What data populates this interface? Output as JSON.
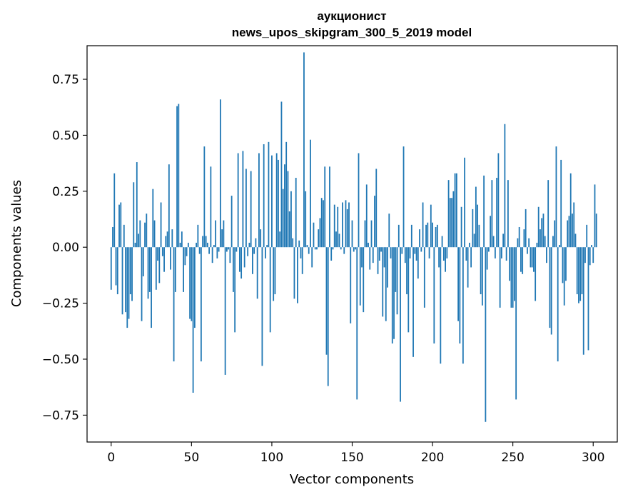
{
  "chart_data": {
    "type": "bar",
    "title_line1": "аукционист",
    "title_line2": "news_upos_skipgram_300_5_2019 model",
    "xlabel": "Vector components",
    "ylabel": "Components values",
    "xlim": [
      -15,
      315
    ],
    "ylim": [
      -0.87,
      0.9
    ],
    "xticks": [
      0,
      50,
      100,
      150,
      200,
      250,
      300
    ],
    "xtick_labels": [
      "0",
      "50",
      "100",
      "150",
      "200",
      "250",
      "300"
    ],
    "yticks": [
      -0.75,
      -0.5,
      -0.25,
      0.0,
      0.25,
      0.5,
      0.75
    ],
    "ytick_labels": [
      "−0.75",
      "−0.50",
      "−0.25",
      "0.00",
      "0.25",
      "0.50",
      "0.75"
    ],
    "bar_color": "#1f77b4",
    "grid": false,
    "values": [
      -0.19,
      0.09,
      0.33,
      -0.17,
      -0.21,
      0.19,
      0.2,
      -0.3,
      0.1,
      -0.29,
      -0.36,
      -0.32,
      -0.21,
      -0.24,
      0.29,
      0.02,
      0.38,
      0.06,
      0.12,
      -0.33,
      -0.13,
      0.11,
      0.15,
      -0.23,
      -0.2,
      -0.36,
      0.26,
      0.12,
      -0.19,
      -0.06,
      -0.16,
      0.2,
      -0.04,
      -0.11,
      0.05,
      0.07,
      0.37,
      -0.1,
      0.08,
      -0.51,
      -0.2,
      0.63,
      0.64,
      0.02,
      0.07,
      -0.2,
      -0.08,
      -0.04,
      0.02,
      -0.32,
      -0.33,
      -0.65,
      -0.36,
      0.02,
      0.1,
      -0.03,
      -0.51,
      0.05,
      0.45,
      0.05,
      0.02,
      -0.03,
      0.36,
      -0.07,
      0.01,
      0.12,
      -0.05,
      -0.02,
      0.66,
      0.08,
      0.12,
      -0.57,
      -0.02,
      -0.01,
      -0.07,
      0.23,
      -0.2,
      -0.38,
      -0.02,
      0.42,
      -0.11,
      -0.14,
      0.43,
      -0.09,
      0.35,
      -0.04,
      0.02,
      0.34,
      -0.12,
      -0.03,
      0.04,
      -0.23,
      0.42,
      0.08,
      -0.53,
      0.46,
      -0.05,
      0.01,
      0.47,
      -0.38,
      0.41,
      -0.24,
      -0.21,
      0.42,
      0.39,
      0.07,
      0.65,
      0.26,
      0.37,
      0.47,
      0.34,
      0.16,
      0.25,
      0.04,
      -0.23,
      0.31,
      -0.25,
      0.03,
      -0.05,
      -0.12,
      0.87,
      0.25,
      0.01,
      -0.03,
      0.48,
      -0.09,
      0.11,
      -0.01,
      -0.01,
      0.08,
      0.13,
      0.22,
      0.21,
      0.36,
      -0.48,
      -0.62,
      0.36,
      -0.06,
      -0.01,
      0.19,
      0.07,
      0.18,
      0.06,
      -0.01,
      0.2,
      -0.03,
      0.21,
      0.17,
      0.2,
      -0.34,
      0.12,
      -0.02,
      -0.01,
      -0.68,
      0.42,
      -0.26,
      -0.09,
      -0.29,
      0.12,
      0.28,
      0.02,
      -0.1,
      0.12,
      -0.07,
      0.23,
      0.35,
      -0.12,
      -0.06,
      -0.02,
      -0.31,
      -0.09,
      -0.33,
      -0.18,
      0.15,
      -0.05,
      -0.43,
      -0.41,
      -0.2,
      -0.3,
      0.1,
      -0.69,
      -0.03,
      0.45,
      -0.07,
      -0.21,
      -0.38,
      -0.05,
      0.1,
      -0.49,
      -0.03,
      -0.06,
      -0.14,
      0.08,
      -0.02,
      0.2,
      -0.27,
      0.1,
      0.11,
      -0.05,
      0.19,
      0.11,
      -0.43,
      0.09,
      0.1,
      -0.09,
      -0.52,
      0.05,
      -0.06,
      -0.11,
      -0.05,
      0.3,
      0.22,
      0.22,
      0.25,
      0.33,
      0.33,
      -0.33,
      -0.43,
      0.18,
      -0.52,
      0.4,
      -0.06,
      -0.18,
      0.02,
      -0.09,
      0.17,
      0.06,
      0.27,
      0.19,
      0.1,
      -0.21,
      -0.26,
      0.32,
      -0.78,
      -0.1,
      -0.02,
      0.14,
      0.3,
      0.05,
      -0.05,
      0.31,
      0.42,
      -0.27,
      -0.05,
      0.06,
      0.55,
      -0.06,
      0.3,
      -0.15,
      -0.27,
      -0.27,
      -0.24,
      -0.68,
      0.04,
      0.09,
      -0.11,
      -0.12,
      0.08,
      0.17,
      -0.03,
      0.04,
      -0.09,
      -0.09,
      -0.11,
      -0.24,
      0.02,
      0.18,
      0.08,
      0.13,
      0.15,
      0.05,
      -0.07,
      0.3,
      -0.36,
      -0.39,
      0.05,
      0.12,
      0.45,
      -0.51,
      0.01,
      0.39,
      -0.16,
      -0.26,
      -0.15,
      0.12,
      0.14,
      0.33,
      0.15,
      0.2,
      0.06,
      -0.21,
      -0.25,
      -0.24,
      -0.21,
      -0.48,
      -0.07,
      0.1,
      -0.46,
      -0.08,
      0.01,
      -0.07,
      0.28,
      0.15
    ]
  }
}
